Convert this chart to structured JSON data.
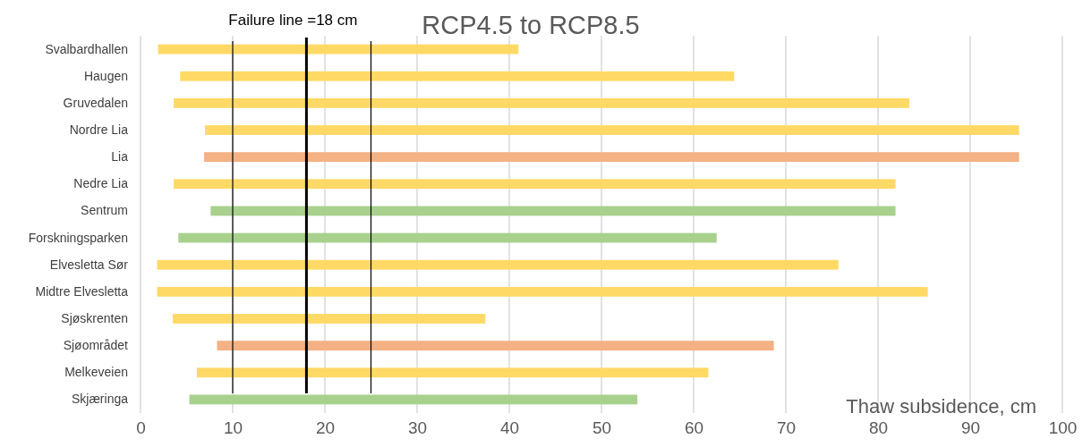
{
  "chart_data": {
    "type": "bar",
    "orientation": "horizontal",
    "title": "RCP4.5 to RCP8.5",
    "xlabel": "Thaw subsidence, cm",
    "categories": [
      "Svalbardhallen",
      "Haugen",
      "Gruvedalen",
      "Nordre Lia",
      "Lia",
      "Nedre Lia",
      "Sentrum",
      "Forskningsparken",
      "Elvesletta Sør",
      "Midtre Elvesletta",
      "Sjøskrenten",
      "Sjøområdet",
      "Melkeveien",
      "Skjæringa"
    ],
    "base": [
      1.9,
      4.3,
      3.6,
      7.0,
      6.9,
      3.6,
      7.6,
      4.1,
      1.8,
      1.8,
      3.5,
      8.3,
      6.1,
      5.3
    ],
    "values": [
      39.1,
      60.1,
      79.8,
      88.3,
      88.4,
      78.3,
      74.3,
      58.4,
      73.9,
      83.6,
      33.9,
      60.4,
      55.5,
      48.6
    ],
    "colors": [
      "#ffd966",
      "#ffd966",
      "#ffd966",
      "#ffd966",
      "#f4b183",
      "#ffd966",
      "#a9d18e",
      "#a9d18e",
      "#ffd966",
      "#ffd966",
      "#ffd966",
      "#f4b183",
      "#ffd966",
      "#a9d18e"
    ],
    "xlim": [
      0,
      100
    ],
    "xticks": [
      0,
      10,
      20,
      30,
      40,
      50,
      60,
      70,
      80,
      90,
      100
    ],
    "grid": "x",
    "ref_lines": [
      {
        "axis": "x",
        "value": 10,
        "color": "#000000"
      },
      {
        "axis": "x",
        "value": 18,
        "label": "Failure line =18 cm",
        "color": "#000000"
      },
      {
        "axis": "x",
        "value": 25,
        "color": "#000000"
      }
    ]
  }
}
